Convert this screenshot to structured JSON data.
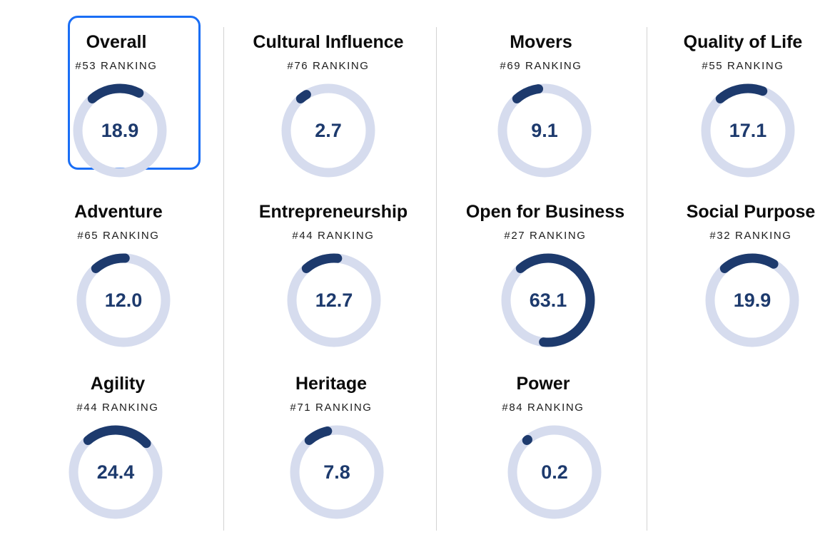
{
  "colors": {
    "track": "#d6dcee",
    "arc": "#1d3a6d",
    "value_text": "#1d3a6d",
    "selected_border": "#1a6ef5",
    "divider": "#d3d3d3"
  },
  "metrics": [
    {
      "title": "Overall",
      "ranking": "#53 RANKING",
      "value": "18.9",
      "percent": 18.9,
      "selected": true
    },
    {
      "title": "Cultural Influence",
      "ranking": "#76 RANKING",
      "value": "2.7",
      "percent": 2.7,
      "selected": false
    },
    {
      "title": "Movers",
      "ranking": "#69 RANKING",
      "value": "9.1",
      "percent": 9.1,
      "selected": false
    },
    {
      "title": "Quality of Life",
      "ranking": "#55 RANKING",
      "value": "17.1",
      "percent": 17.1,
      "selected": false
    },
    {
      "title": "Adventure",
      "ranking": "#65 RANKING",
      "value": "12.0",
      "percent": 12.0,
      "selected": false
    },
    {
      "title": "Entrepreneurship",
      "ranking": "#44 RANKING",
      "value": "12.7",
      "percent": 12.7,
      "selected": false
    },
    {
      "title": "Open for Business",
      "ranking": "#27 RANKING",
      "value": "63.1",
      "percent": 63.1,
      "selected": false
    },
    {
      "title": "Social Purpose",
      "ranking": "#32 RANKING",
      "value": "19.9",
      "percent": 19.9,
      "selected": false
    },
    {
      "title": "Agility",
      "ranking": "#44 RANKING",
      "value": "24.4",
      "percent": 24.4,
      "selected": false
    },
    {
      "title": "Heritage",
      "ranking": "#71 RANKING",
      "value": "7.8",
      "percent": 7.8,
      "selected": false
    },
    {
      "title": "Power",
      "ranking": "#84 RANKING",
      "value": "0.2",
      "percent": 0.2,
      "selected": false
    }
  ]
}
